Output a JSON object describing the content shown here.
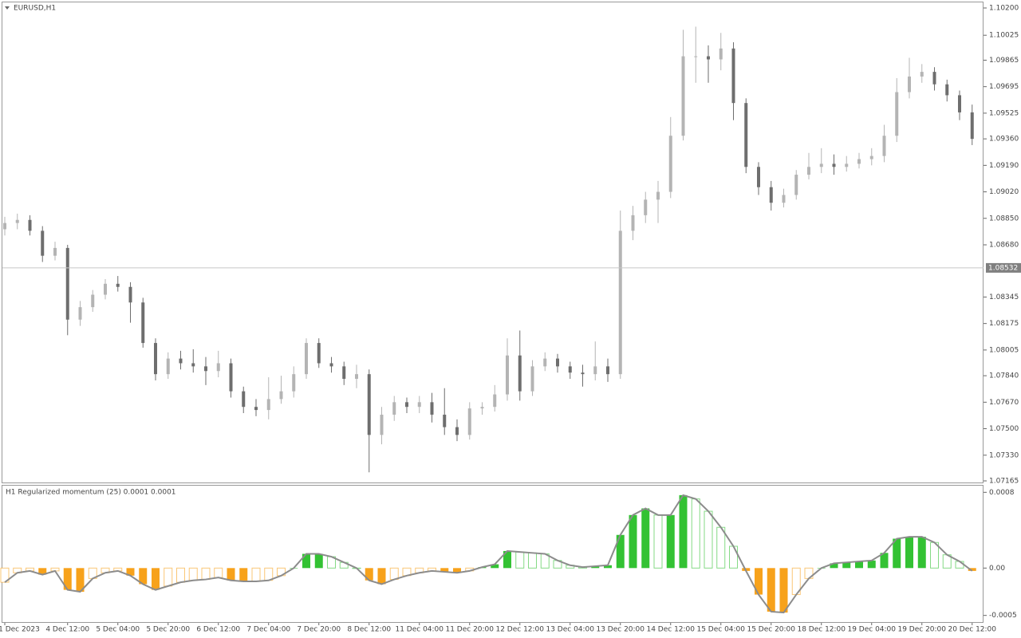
{
  "chart_data": [
    {
      "type": "candlestick",
      "title": "EURUSD,H1",
      "categories": [
        "1 Dec 2023",
        null,
        null,
        null,
        null,
        "4 Dec 12:00",
        null,
        null,
        null,
        "5 Dec 04:00",
        null,
        null,
        null,
        "5 Dec 20:00",
        null,
        null,
        null,
        "6 Dec 12:00",
        null,
        null,
        null,
        "7 Dec 04:00",
        null,
        null,
        null,
        "7 Dec 20:00",
        null,
        null,
        null,
        "8 Dec 12:00",
        null,
        null,
        null,
        "11 Dec 04:00",
        null,
        null,
        null,
        "11 Dec 20:00",
        null,
        null,
        null,
        "12 Dec 12:00",
        null,
        null,
        null,
        "13 Dec 04:00",
        null,
        null,
        null,
        "13 Dec 20:00",
        null,
        null,
        null,
        "14 Dec 12:00",
        null,
        null,
        null,
        "15 Dec 04:00",
        null,
        null,
        null,
        "15 Dec 20:00",
        null,
        null,
        null,
        "18 Dec 12:00",
        null,
        null,
        null,
        "19 Dec 04:00",
        null,
        null,
        null,
        "19 Dec 20:00",
        null,
        null,
        null,
        "20 Dec 12:00"
      ],
      "open": [
        1.0878,
        1.0882,
        1.0884,
        1.0877,
        1.0861,
        1.0866,
        1.082,
        1.0828,
        1.0836,
        1.0843,
        1.0841,
        1.0831,
        1.0805,
        1.0785,
        1.0795,
        1.0792,
        1.079,
        1.0787,
        1.0792,
        1.0774,
        1.0764,
        1.0762,
        1.0769,
        1.0774,
        1.0785,
        1.0805,
        1.0792,
        1.079,
        1.0782,
        1.0785,
        1.0746,
        1.0759,
        1.0767,
        1.0764,
        1.0767,
        1.0759,
        1.0751,
        1.0746,
        1.0763,
        1.0764,
        1.0772,
        1.0797,
        1.0774,
        1.079,
        1.0795,
        1.079,
        1.0786,
        1.0785,
        1.079,
        1.0785,
        1.0877,
        1.0887,
        1.0897,
        1.0902,
        1.0938,
        1.0989,
        1.0989,
        1.0987,
        1.0994,
        1.0959,
        1.0918,
        1.0905,
        1.0895,
        1.09,
        1.0913,
        1.0918,
        1.092,
        1.0918,
        1.092,
        1.0923,
        1.0925,
        1.0938,
        1.0966,
        1.0976,
        1.0979,
        1.0971,
        1.0964,
        1.0953
      ],
      "high": [
        1.0886,
        1.0888,
        1.0887,
        1.088,
        1.087,
        1.0868,
        1.0832,
        1.0839,
        1.0846,
        1.0848,
        1.0844,
        1.0834,
        1.0808,
        1.0799,
        1.08,
        1.0801,
        1.0796,
        1.08,
        1.0795,
        1.0777,
        1.0769,
        1.0783,
        1.0784,
        1.079,
        1.0808,
        1.0808,
        1.0796,
        1.0793,
        1.0791,
        1.0788,
        1.0764,
        1.0771,
        1.077,
        1.0771,
        1.0773,
        1.0776,
        1.0756,
        1.0767,
        1.0767,
        1.0778,
        1.0808,
        1.0813,
        1.0794,
        1.0799,
        1.0798,
        1.0793,
        1.0791,
        1.0806,
        1.0795,
        1.089,
        1.0893,
        1.0902,
        1.0909,
        1.095,
        1.1006,
        1.1008,
        1.0996,
        1.1004,
        1.0998,
        1.0962,
        1.0921,
        1.0909,
        1.0904,
        1.0916,
        1.0927,
        1.093,
        1.0926,
        1.0925,
        1.0927,
        1.093,
        1.0945,
        1.0975,
        1.0988,
        1.0984,
        1.0982,
        1.0974,
        1.0967,
        1.0958
      ],
      "low": [
        1.0874,
        1.0878,
        1.0874,
        1.0857,
        1.0858,
        1.081,
        1.0816,
        1.0825,
        1.0833,
        1.0838,
        1.0818,
        1.0802,
        1.0781,
        1.0782,
        1.0788,
        1.0786,
        1.0778,
        1.0783,
        1.077,
        1.076,
        1.0758,
        1.0756,
        1.0766,
        1.077,
        1.0782,
        1.0789,
        1.0786,
        1.0778,
        1.0776,
        1.0722,
        1.074,
        1.0755,
        1.076,
        1.076,
        1.0754,
        1.0746,
        1.0742,
        1.0743,
        1.0759,
        1.0761,
        1.0768,
        1.0768,
        1.0771,
        1.0787,
        1.0786,
        1.0782,
        1.0777,
        1.0781,
        1.078,
        1.0782,
        1.0871,
        1.0882,
        1.0882,
        1.0898,
        1.0935,
        1.0972,
        1.0972,
        1.098,
        1.0948,
        1.0914,
        1.09,
        1.089,
        1.0892,
        1.0897,
        1.091,
        1.0914,
        1.0913,
        1.0915,
        1.0917,
        1.0919,
        1.0921,
        1.0934,
        1.0962,
        1.0972,
        1.0967,
        1.096,
        1.0948,
        1.0932
      ],
      "close": [
        1.0882,
        1.0884,
        1.0877,
        1.0861,
        1.0866,
        1.082,
        1.0828,
        1.0836,
        1.0843,
        1.0841,
        1.0831,
        1.0805,
        1.0785,
        1.0795,
        1.0792,
        1.079,
        1.0787,
        1.0792,
        1.0774,
        1.0764,
        1.0762,
        1.0769,
        1.0774,
        1.0785,
        1.0805,
        1.0792,
        1.079,
        1.0782,
        1.0785,
        1.0746,
        1.0759,
        1.0767,
        1.0764,
        1.0767,
        1.0759,
        1.0751,
        1.0746,
        1.0763,
        1.0764,
        1.0772,
        1.0797,
        1.0774,
        1.079,
        1.0795,
        1.079,
        1.0786,
        1.0785,
        1.079,
        1.0785,
        1.0877,
        1.0887,
        1.0897,
        1.0902,
        1.0938,
        1.0989,
        1.0989,
        1.0987,
        1.0994,
        1.0959,
        1.0918,
        1.0905,
        1.0895,
        1.09,
        1.0913,
        1.0918,
        1.092,
        1.0918,
        1.092,
        1.0923,
        1.0925,
        1.0938,
        1.0966,
        1.0976,
        1.0979,
        1.0971,
        1.0964,
        1.0953,
        1.0936
      ],
      "up_color": "#b4b4b4",
      "down_color": "#6e6e6e",
      "current_price": 1.08532,
      "ylim": [
        1.07165,
        1.102
      ],
      "yticks": [
        {
          "value": 1.102,
          "label": "1.10200"
        },
        1.10025,
        1.09865,
        1.09695,
        1.09525,
        {
          "value": 1.0936,
          "label": "1.09360"
        },
        {
          "value": 1.0919,
          "label": "1.09190"
        },
        {
          "value": 1.0902,
          "label": "1.09020"
        },
        {
          "value": 1.0885,
          "label": "1.08850"
        },
        {
          "value": 1.0868,
          "label": "1.08680"
        },
        1.08345,
        1.08175,
        1.08005,
        {
          "value": 1.0784,
          "label": "1.07840"
        },
        {
          "value": 1.0767,
          "label": "1.07670"
        },
        {
          "value": 1.075,
          "label": "1.07500"
        },
        {
          "value": 1.0733,
          "label": "1.07330"
        },
        1.07165
      ]
    },
    {
      "type": "bar",
      "title": "H1 Regularized momentum (25) 0.0001 0.0001",
      "values": [
        -0.00015,
        -5e-05,
        -3e-05,
        -7e-05,
        -3e-05,
        -0.00023,
        -0.00025,
        -0.00011,
        -5e-05,
        -3e-05,
        -8e-05,
        -0.00017,
        -0.00023,
        -0.00019,
        -0.00015,
        -0.00013,
        -0.00012,
        -0.0001,
        -0.00013,
        -0.00014,
        -0.00014,
        -0.00013,
        -8e-05,
        0,
        0.00015,
        0.00015,
        0.00012,
        6e-05,
        0,
        -0.00013,
        -0.00017,
        -0.00012,
        -8e-05,
        -5e-05,
        -3e-05,
        -4e-05,
        -5e-05,
        -3e-05,
        1e-05,
        4e-05,
        0.00018,
        0.00017,
        0.00016,
        0.00015,
        8e-05,
        3e-05,
        1e-05,
        2e-05,
        3e-05,
        0.00035,
        0.00056,
        0.00063,
        0.00056,
        0.00056,
        0.00077,
        0.00073,
        0.0006,
        0.00043,
        0.00023,
        -3e-05,
        -0.00028,
        -0.00046,
        -0.00047,
        -0.00028,
        -0.00011,
        0,
        5e-05,
        6e-05,
        7e-05,
        8e-05,
        0.00016,
        0.00031,
        0.00033,
        0.00033,
        0.00027,
        0.00014,
        7e-05,
        -3e-05
      ],
      "up_color": "#33c233",
      "down_color": "#f7a21b",
      "line_color": "#8c8c8c",
      "ylim": [
        -0.00057,
        0.00087
      ],
      "yticks": [
        0.0008,
        {
          "value": 0,
          "label": "0.00"
        },
        -0.0005
      ]
    }
  ]
}
